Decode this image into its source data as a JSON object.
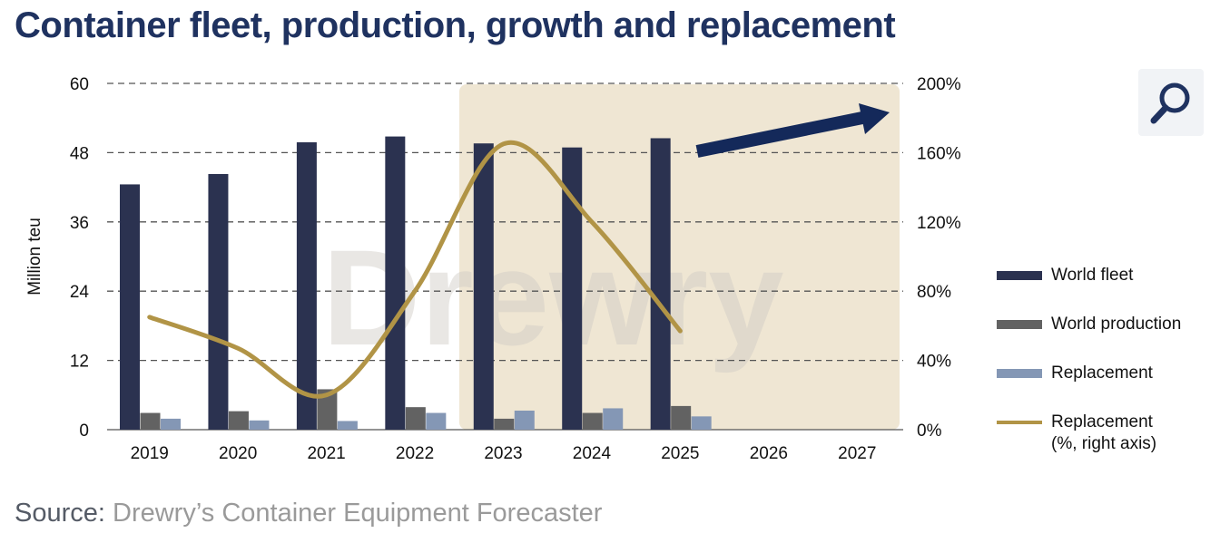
{
  "title": "Container fleet, production, growth and replacement",
  "source": {
    "label": "Source:",
    "text": "Drewry’s Container Equipment Forecaster"
  },
  "zoom_icon": "magnifier-icon",
  "watermark": "Drewry",
  "colors": {
    "title": "#1f3260",
    "world_fleet": "#2b3250",
    "world_production": "#626262",
    "replacement": "#8497b5",
    "replacement_pct": "#b19446",
    "forecast_shade": "#efe6d3",
    "arrow": "#14295a"
  },
  "chart_data": {
    "type": "bar",
    "categories": [
      "2019",
      "2020",
      "2021",
      "2022",
      "2023",
      "2024",
      "2025",
      "2026",
      "2027"
    ],
    "ylabel": "Million teu",
    "ylim": [
      0,
      60
    ],
    "yticks": [
      "0",
      "12",
      "24",
      "36",
      "48",
      "60"
    ],
    "y2lim": [
      0,
      200
    ],
    "y2ticks": [
      "0%",
      "40%",
      "80%",
      "120%",
      "160%",
      "200%"
    ],
    "grid": true,
    "legend_position": "right",
    "forecast_shaded_from": "2023",
    "series": [
      {
        "name": "World fleet",
        "type": "bar",
        "axis": "left",
        "values": [
          42.5,
          44.3,
          49.8,
          50.8,
          49.6,
          48.9,
          50.5,
          null,
          null
        ]
      },
      {
        "name": "World production",
        "type": "bar",
        "axis": "left",
        "values": [
          2.9,
          3.2,
          7.0,
          3.9,
          1.9,
          2.9,
          4.1,
          null,
          null
        ]
      },
      {
        "name": "Replacement",
        "type": "bar",
        "axis": "left",
        "values": [
          1.9,
          1.6,
          1.5,
          2.9,
          3.3,
          3.7,
          2.3,
          null,
          null
        ]
      },
      {
        "name": "Replacement\n(%, right axis)",
        "type": "line",
        "axis": "right",
        "values": [
          65,
          47,
          20,
          80,
          165,
          120,
          57,
          null,
          null
        ]
      }
    ],
    "legend": [
      {
        "label": "World fleet",
        "kind": "bar"
      },
      {
        "label": "World production",
        "kind": "bar"
      },
      {
        "label": "Replacement",
        "kind": "bar"
      },
      {
        "label": "Replacement",
        "label2": "(%, right axis)",
        "kind": "line"
      }
    ]
  }
}
